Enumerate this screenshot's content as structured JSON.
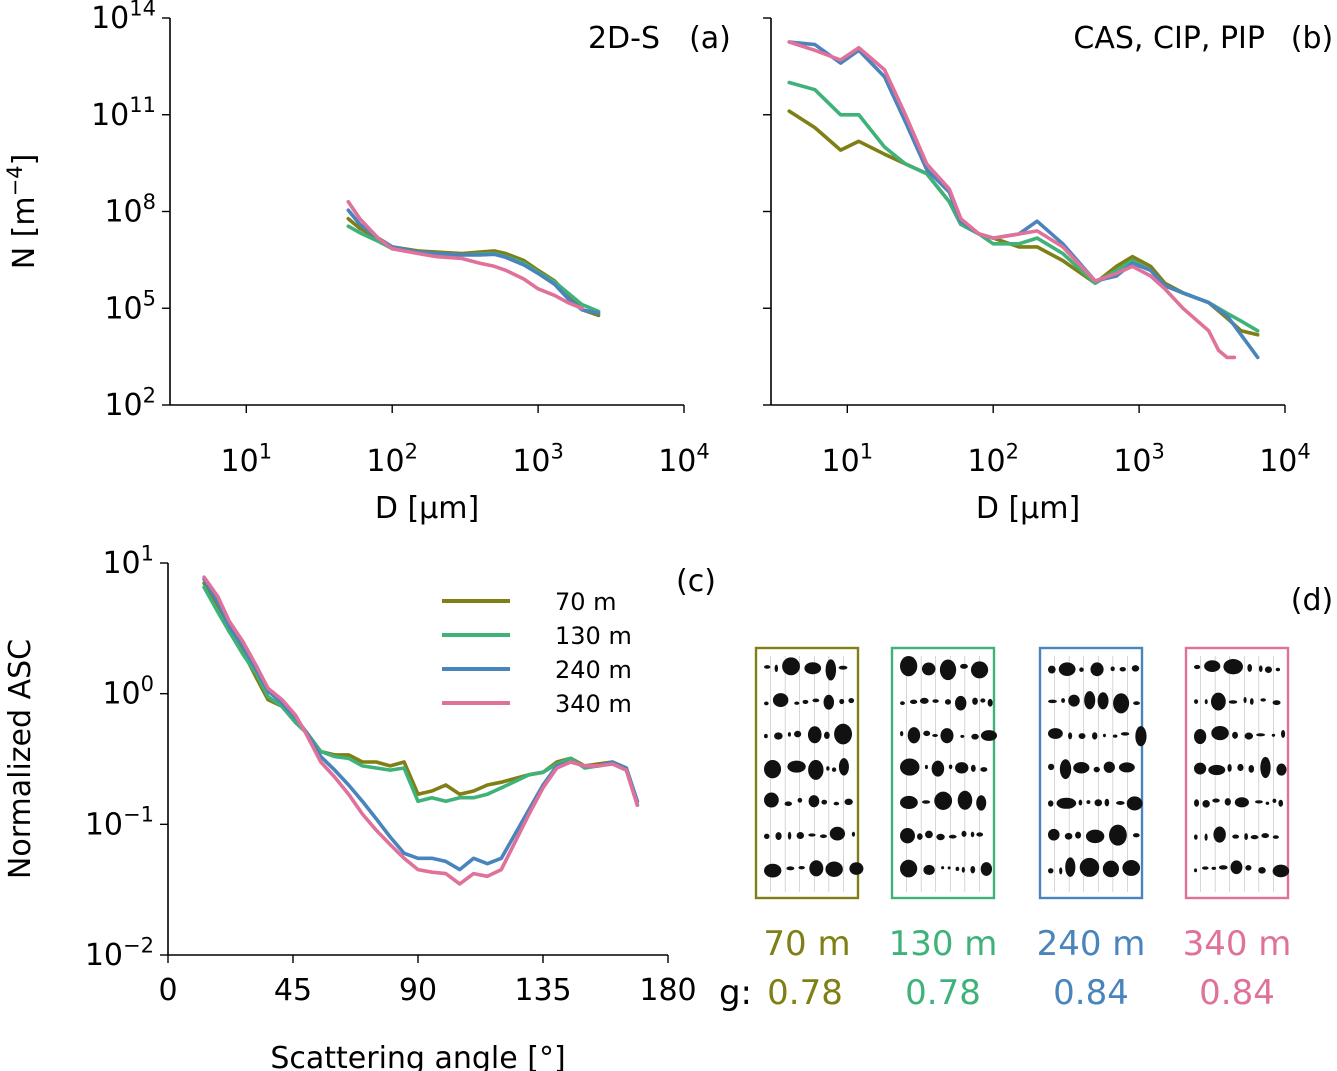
{
  "series_colors": {
    "70 m": "#7f7f16",
    "130 m": "#3fb27a",
    "240 m": "#4a84bd",
    "340 m": "#e0719a"
  },
  "chart_data": [
    {
      "type": "line",
      "panel": "a",
      "title": "2D-S",
      "tag": "(a)",
      "xlabel": "D [µm]",
      "ylabel": "N [m⁻⁴]",
      "xscale": "log",
      "yscale": "log",
      "xlim": [
        3,
        10000
      ],
      "ylim": [
        100,
        100000000000000
      ],
      "xticks": [
        {
          "v": 10,
          "base": "10",
          "exp": "1"
        },
        {
          "v": 100,
          "base": "10",
          "exp": "2"
        },
        {
          "v": 1000,
          "base": "10",
          "exp": "3"
        },
        {
          "v": 10000,
          "base": "10",
          "exp": "4"
        }
      ],
      "yticks": [
        {
          "v": 100,
          "base": "10",
          "exp": "2"
        },
        {
          "v": 100000,
          "base": "10",
          "exp": "5"
        },
        {
          "v": 100000000,
          "base": "10",
          "exp": "8"
        },
        {
          "v": 100000000000,
          "base": "10",
          "exp": "11"
        },
        {
          "v": 100000000000000,
          "base": "10",
          "exp": "14"
        }
      ],
      "series": [
        {
          "name": "70 m",
          "x": [
            50,
            60,
            80,
            100,
            150,
            200,
            300,
            400,
            500,
            600,
            800,
            1000,
            1300,
            1600,
            2000,
            2600
          ],
          "y": [
            60000000,
            30000000,
            15000000,
            8000000,
            6000000,
            5500000,
            5000000,
            5500000,
            6000000,
            5000000,
            3000000,
            1500000,
            700000,
            250000,
            90000,
            60000
          ]
        },
        {
          "name": "130 m",
          "x": [
            50,
            60,
            80,
            100,
            150,
            200,
            300,
            400,
            500,
            600,
            800,
            1000,
            1300,
            1600,
            2000,
            2600
          ],
          "y": [
            35000000,
            22000000,
            12000000,
            7000000,
            5500000,
            5000000,
            4500000,
            4800000,
            5000000,
            4000000,
            2500000,
            1300000,
            650000,
            300000,
            130000,
            80000
          ]
        },
        {
          "name": "240 m",
          "x": [
            50,
            60,
            80,
            100,
            150,
            200,
            300,
            400,
            500,
            600,
            800,
            1000,
            1300,
            1600,
            2000,
            2600
          ],
          "y": [
            110000000,
            40000000,
            15000000,
            8000000,
            5500000,
            5000000,
            4500000,
            4500000,
            4700000,
            3800000,
            2200000,
            1200000,
            550000,
            200000,
            90000,
            70000
          ]
        },
        {
          "name": "340 m",
          "x": [
            50,
            60,
            80,
            100,
            150,
            200,
            300,
            400,
            500,
            600,
            800,
            1000,
            1300,
            1600,
            2000
          ],
          "y": [
            200000000,
            60000000,
            15000000,
            7000000,
            5000000,
            4000000,
            3500000,
            2500000,
            2000000,
            1500000,
            800000,
            400000,
            250000,
            150000,
            100000
          ]
        }
      ]
    },
    {
      "type": "line",
      "panel": "b",
      "title": "CAS, CIP, PIP",
      "tag": "(b)",
      "xlabel": "D [µm]",
      "xscale": "log",
      "yscale": "log",
      "xlim": [
        3,
        10000
      ],
      "ylim": [
        100,
        100000000000000
      ],
      "xticks": [
        {
          "v": 10,
          "base": "10",
          "exp": "1"
        },
        {
          "v": 100,
          "base": "10",
          "exp": "2"
        },
        {
          "v": 1000,
          "base": "10",
          "exp": "3"
        },
        {
          "v": 10000,
          "base": "10",
          "exp": "4"
        }
      ],
      "series": [
        {
          "name": "70 m",
          "x": [
            4,
            6,
            9,
            12,
            18,
            25,
            35,
            50,
            60,
            80,
            100,
            150,
            200,
            300,
            500,
            700,
            900,
            1200,
            1500,
            2000,
            3000,
            4000,
            5000,
            6500
          ],
          "y": [
            130000000000,
            40000000000,
            8000000000,
            15000000000,
            6000000000,
            3000000000,
            1500000000,
            200000000,
            40000000,
            20000000,
            15000000,
            8000000,
            8000000,
            3000000,
            600000,
            2000000,
            4000000,
            2000000,
            600000,
            300000,
            150000,
            50000,
            20000,
            15000
          ]
        },
        {
          "name": "130 m",
          "x": [
            4,
            6,
            9,
            12,
            18,
            25,
            35,
            50,
            60,
            80,
            100,
            150,
            200,
            300,
            500,
            700,
            900,
            1200,
            1500,
            2000,
            3000,
            4000,
            5000,
            6500
          ],
          "y": [
            1000000000000,
            600000000000,
            100000000000,
            100000000000,
            10000000000,
            3000000000,
            1500000000,
            200000000,
            40000000,
            20000000,
            10000000,
            10000000,
            15000000,
            5000000,
            600000,
            1500000,
            3000000,
            1500000,
            500000,
            300000,
            150000,
            70000,
            40000,
            20000
          ]
        },
        {
          "name": "240 m",
          "x": [
            4,
            6,
            9,
            12,
            18,
            25,
            35,
            50,
            60,
            80,
            100,
            150,
            200,
            300,
            500,
            700,
            900,
            1200,
            1500,
            2000,
            3000,
            4000,
            5000,
            6500
          ],
          "y": [
            18000000000000,
            15000000000000,
            4000000000000,
            10000000000000,
            1500000000000,
            60000000000,
            2000000000,
            400000000,
            50000000,
            20000000,
            15000000,
            20000000,
            50000000,
            10000000,
            700000,
            1000000,
            2500000,
            1500000,
            500000,
            300000,
            150000,
            60000,
            15000,
            3000
          ]
        },
        {
          "name": "340 m",
          "x": [
            4,
            6,
            9,
            12,
            18,
            25,
            35,
            50,
            60,
            80,
            100,
            150,
            200,
            300,
            500,
            700,
            900,
            1200,
            1500,
            2000,
            3000,
            3500,
            4000,
            4500
          ],
          "y": [
            18000000000000,
            10000000000000,
            5000000000000,
            12000000000000,
            2500000000000,
            100000000000,
            3000000000,
            500000000,
            60000000,
            20000000,
            15000000,
            20000000,
            25000000,
            8000000,
            700000,
            1200000,
            2000000,
            1000000,
            400000,
            100000,
            20000,
            5000,
            3000,
            3000
          ]
        }
      ]
    },
    {
      "type": "line",
      "panel": "c",
      "tag": "(c)",
      "xlabel": "Scattering angle [°]",
      "ylabel": "Normalized ASC",
      "xscale": "linear",
      "yscale": "log",
      "xlim": [
        0,
        180
      ],
      "ylim": [
        0.01,
        10
      ],
      "xticks": [
        {
          "v": 0,
          "label": "0"
        },
        {
          "v": 45,
          "label": "45"
        },
        {
          "v": 90,
          "label": "90"
        },
        {
          "v": 135,
          "label": "135"
        },
        {
          "v": 180,
          "label": "180"
        }
      ],
      "yticks": [
        {
          "v": 0.01,
          "base": "10",
          "exp": "−2"
        },
        {
          "v": 0.1,
          "base": "10",
          "exp": "−1"
        },
        {
          "v": 1,
          "base": "10",
          "exp": "0"
        },
        {
          "v": 10,
          "base": "10",
          "exp": "1"
        }
      ],
      "legend": {
        "location": "upper center",
        "entries": [
          "70 m",
          "130 m",
          "240 m",
          "340 m"
        ]
      },
      "series": [
        {
          "name": "70 m",
          "x": [
            13,
            18,
            22,
            27,
            32,
            36,
            41,
            46,
            50,
            55,
            60,
            65,
            70,
            75,
            80,
            85,
            90,
            95,
            100,
            105,
            110,
            115,
            120,
            130,
            135,
            140,
            145,
            150,
            155,
            160,
            165,
            169
          ],
          "y": [
            7,
            4.5,
            3,
            2.1,
            1.3,
            0.9,
            0.8,
            0.6,
            0.5,
            0.36,
            0.34,
            0.34,
            0.3,
            0.3,
            0.28,
            0.3,
            0.17,
            0.18,
            0.2,
            0.17,
            0.18,
            0.2,
            0.21,
            0.24,
            0.25,
            0.3,
            0.32,
            0.28,
            0.29,
            0.3,
            0.27,
            0.14
          ]
        },
        {
          "name": "130 m",
          "x": [
            13,
            18,
            22,
            27,
            32,
            36,
            41,
            46,
            50,
            55,
            60,
            65,
            70,
            75,
            80,
            85,
            90,
            95,
            100,
            105,
            110,
            115,
            120,
            130,
            135,
            140,
            145,
            150,
            155,
            160,
            165,
            169
          ],
          "y": [
            6.5,
            4.2,
            3,
            2,
            1.4,
            0.95,
            0.8,
            0.6,
            0.5,
            0.36,
            0.33,
            0.32,
            0.28,
            0.27,
            0.26,
            0.27,
            0.15,
            0.16,
            0.15,
            0.16,
            0.16,
            0.17,
            0.19,
            0.24,
            0.25,
            0.29,
            0.32,
            0.27,
            0.28,
            0.29,
            0.26,
            0.14
          ]
        },
        {
          "name": "240 m",
          "x": [
            13,
            18,
            22,
            27,
            32,
            36,
            41,
            46,
            50,
            55,
            60,
            65,
            70,
            75,
            80,
            85,
            90,
            95,
            100,
            105,
            110,
            115,
            120,
            130,
            135,
            140,
            145,
            150,
            155,
            160,
            165,
            169
          ],
          "y": [
            7.5,
            5,
            3.3,
            2.3,
            1.5,
            1.05,
            0.85,
            0.65,
            0.5,
            0.33,
            0.26,
            0.2,
            0.15,
            0.11,
            0.08,
            0.06,
            0.055,
            0.055,
            0.052,
            0.045,
            0.055,
            0.05,
            0.055,
            0.13,
            0.2,
            0.28,
            0.3,
            0.28,
            0.28,
            0.3,
            0.27,
            0.15
          ]
        },
        {
          "name": "340 m",
          "x": [
            13,
            18,
            22,
            27,
            32,
            36,
            41,
            46,
            50,
            55,
            60,
            65,
            70,
            75,
            80,
            85,
            90,
            95,
            100,
            105,
            110,
            115,
            120,
            130,
            135,
            140,
            145,
            150,
            155,
            160,
            165,
            169
          ],
          "y": [
            7.8,
            5.5,
            3.6,
            2.5,
            1.6,
            1.1,
            0.9,
            0.68,
            0.48,
            0.3,
            0.23,
            0.17,
            0.12,
            0.09,
            0.07,
            0.055,
            0.045,
            0.043,
            0.042,
            0.035,
            0.042,
            0.04,
            0.045,
            0.12,
            0.19,
            0.27,
            0.3,
            0.28,
            0.28,
            0.29,
            0.26,
            0.14
          ]
        }
      ]
    }
  ],
  "panel_d": {
    "tag": "(d)",
    "g_label": "g:",
    "boxes": [
      {
        "label": "70 m",
        "g": "0.78"
      },
      {
        "label": "130 m",
        "g": "0.78"
      },
      {
        "label": "240 m",
        "g": "0.84"
      },
      {
        "label": "340 m",
        "g": "0.84"
      }
    ]
  }
}
